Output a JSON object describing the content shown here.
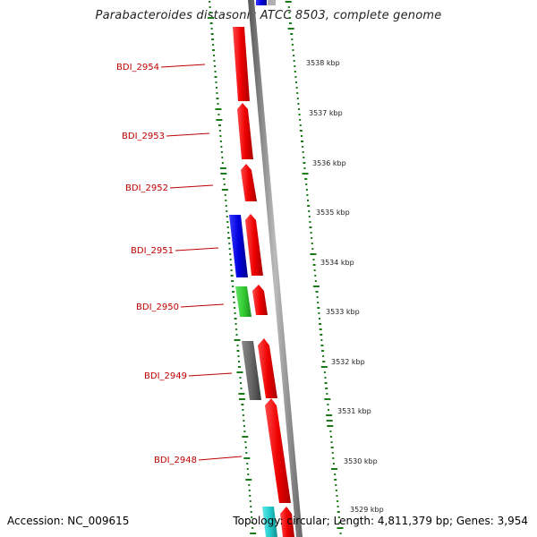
{
  "title": "Parabacteroides distasonis ATCC 8503, complete genome",
  "footer": {
    "accession": "Accession: NC_009615",
    "info": "Topology: circular; Length: 4,811,379 bp; Genes: 3,954"
  },
  "colors": {
    "label": "#c00000",
    "gene_red": "#ee0000",
    "gene_blue": "#0000dd",
    "gene_green": "#33cc33",
    "gene_gray": "#666666",
    "gene_cyan": "#22cccc",
    "backbone": "#888888",
    "gc_marks": "#1a7a1a"
  },
  "gene_labels": [
    "BDI_2954",
    "BDI_2953",
    "BDI_2952",
    "BDI_2951",
    "BDI_2950",
    "BDI_2949",
    "BDI_2948"
  ],
  "kbp_ticks": [
    "3538 kbp",
    "3537 kbp",
    "3536 kbp",
    "3535 kbp",
    "3534 kbp",
    "3533 kbp",
    "3532 kbp",
    "3531 kbp",
    "3530 kbp",
    "3529 kbp"
  ]
}
